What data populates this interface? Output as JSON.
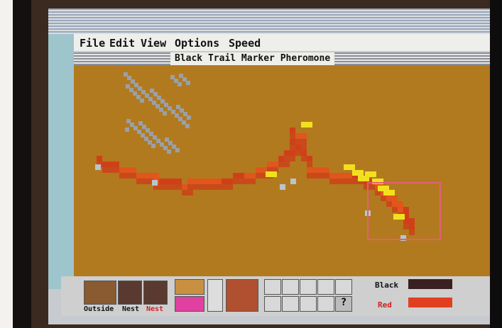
{
  "window": {
    "title": "Black Trail Marker Pheromone"
  },
  "menu": [
    "File",
    "Edit",
    "View",
    "Options",
    "Speed"
  ],
  "toolbar": {
    "view_labels": [
      "Outside",
      "Nest",
      "Nest"
    ],
    "help": "?",
    "colonies": [
      "Black",
      "Red"
    ]
  }
}
